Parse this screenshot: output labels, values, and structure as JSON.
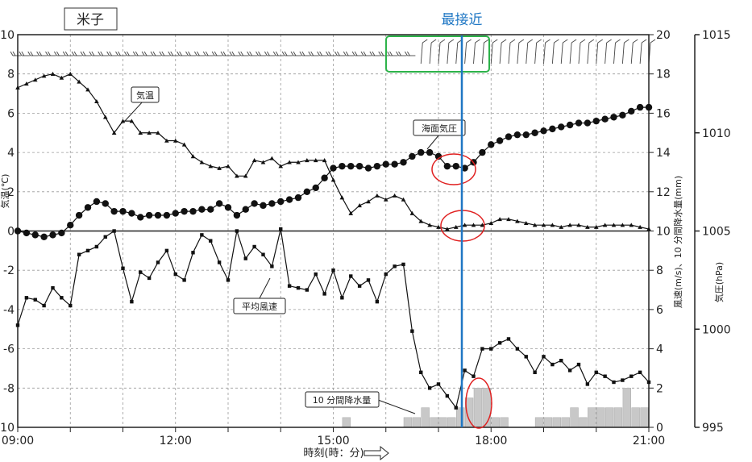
{
  "chart_data": {
    "type": "line",
    "station": "米子",
    "closest_label": "最接近",
    "xlabel": "時刻(時：分)",
    "ylabel_left": "気温(℃)",
    "ylabel_right1": "風速(m/s)、10 分間降水量(mm)",
    "ylabel_right2": "気圧(hPa)",
    "x_range": [
      "09:00",
      "21:00"
    ],
    "x_ticks": [
      "09:00",
      "12:00",
      "15:00",
      "18:00",
      "21:00"
    ],
    "y_left": {
      "range": [
        -10,
        10
      ],
      "ticks": [
        "10",
        "8",
        "6",
        "4",
        "2",
        "0",
        "-2",
        "-4",
        "-6",
        "-8",
        "-10"
      ]
    },
    "y_right1": {
      "range": [
        0,
        20
      ],
      "ticks": [
        "20",
        "18",
        "16",
        "14",
        "12",
        "10",
        "8",
        "6",
        "4",
        "2",
        "0"
      ]
    },
    "y_right2": {
      "range": [
        995,
        1015
      ],
      "ticks": [
        "1015",
        "1010",
        "1005",
        "1000",
        "995"
      ]
    },
    "closest_time": "17:30",
    "series": [
      {
        "name": "気温",
        "marker": "triangle",
        "x": [
          "09:00",
          "09:10",
          "09:20",
          "09:30",
          "09:40",
          "09:50",
          "10:00",
          "10:10",
          "10:20",
          "10:30",
          "10:40",
          "10:50",
          "11:00",
          "11:10",
          "11:20",
          "11:30",
          "11:40",
          "11:50",
          "12:00",
          "12:10",
          "12:20",
          "12:30",
          "12:40",
          "12:50",
          "13:00",
          "13:10",
          "13:20",
          "13:30",
          "13:40",
          "13:50",
          "14:00",
          "14:10",
          "14:20",
          "14:30",
          "14:40",
          "14:50",
          "15:00",
          "15:10",
          "15:20",
          "15:30",
          "15:40",
          "15:50",
          "16:00",
          "16:10",
          "16:20",
          "16:30",
          "16:40",
          "16:50",
          "17:00",
          "17:10",
          "17:20",
          "17:30",
          "17:40",
          "17:50",
          "18:00",
          "18:10",
          "18:20",
          "18:30",
          "18:40",
          "18:50",
          "19:00",
          "19:10",
          "19:20",
          "19:30",
          "19:40",
          "19:50",
          "20:00",
          "20:10",
          "20:20",
          "20:30",
          "20:40",
          "20:50",
          "21:00"
        ],
        "values": [
          7.3,
          7.5,
          7.7,
          7.9,
          8.0,
          7.8,
          8.0,
          7.6,
          7.2,
          6.6,
          5.8,
          5.0,
          5.6,
          5.6,
          5.0,
          5.0,
          5.0,
          4.6,
          4.6,
          4.4,
          3.8,
          3.5,
          3.3,
          3.2,
          3.3,
          2.8,
          2.8,
          3.6,
          3.5,
          3.7,
          3.3,
          3.5,
          3.5,
          3.6,
          3.6,
          3.6,
          2.6,
          1.7,
          0.9,
          1.3,
          1.5,
          1.8,
          1.6,
          1.8,
          1.6,
          0.9,
          0.5,
          0.3,
          0.2,
          0.1,
          0.2,
          0.3,
          0.3,
          0.3,
          0.4,
          0.6,
          0.6,
          0.5,
          0.4,
          0.3,
          0.3,
          0.3,
          0.2,
          0.3,
          0.3,
          0.2,
          0.2,
          0.3,
          0.3,
          0.3,
          0.3,
          0.2,
          0.1
        ]
      },
      {
        "name": "海面気圧",
        "marker": "circle",
        "x": [
          "09:00",
          "09:10",
          "09:20",
          "09:30",
          "09:40",
          "09:50",
          "10:00",
          "10:10",
          "10:20",
          "10:30",
          "10:40",
          "10:50",
          "11:00",
          "11:10",
          "11:20",
          "11:30",
          "11:40",
          "11:50",
          "12:00",
          "12:10",
          "12:20",
          "12:30",
          "12:40",
          "12:50",
          "13:00",
          "13:10",
          "13:20",
          "13:30",
          "13:40",
          "13:50",
          "14:00",
          "14:10",
          "14:20",
          "14:30",
          "14:40",
          "14:50",
          "15:00",
          "15:10",
          "15:20",
          "15:30",
          "15:40",
          "15:50",
          "16:00",
          "16:10",
          "16:20",
          "16:30",
          "16:40",
          "16:50",
          "17:00",
          "17:10",
          "17:20",
          "17:30",
          "17:40",
          "17:50",
          "18:00",
          "18:10",
          "18:20",
          "18:30",
          "18:40",
          "18:50",
          "19:00",
          "19:10",
          "19:20",
          "19:30",
          "19:40",
          "19:50",
          "20:00",
          "20:10",
          "20:20",
          "20:30",
          "20:40",
          "20:50",
          "21:00"
        ],
        "values": [
          1005.0,
          1004.9,
          1004.8,
          1004.7,
          1004.8,
          1004.9,
          1005.3,
          1005.8,
          1006.2,
          1006.5,
          1006.4,
          1006.0,
          1006.0,
          1005.9,
          1005.7,
          1005.8,
          1005.8,
          1005.8,
          1005.9,
          1006.0,
          1006.0,
          1006.1,
          1006.1,
          1006.4,
          1006.2,
          1005.8,
          1006.1,
          1006.4,
          1006.3,
          1006.4,
          1006.5,
          1006.6,
          1006.7,
          1007.0,
          1007.2,
          1007.7,
          1008.2,
          1008.3,
          1008.3,
          1008.3,
          1008.2,
          1008.3,
          1008.4,
          1008.4,
          1008.5,
          1008.8,
          1009.0,
          1009.0,
          1008.8,
          1008.3,
          1008.3,
          1008.2,
          1008.5,
          1009.0,
          1009.4,
          1009.6,
          1009.8,
          1009.9,
          1009.9,
          1010.0,
          1010.1,
          1010.2,
          1010.3,
          1010.4,
          1010.5,
          1010.5,
          1010.6,
          1010.7,
          1010.8,
          1010.9,
          1011.1,
          1011.3,
          1011.3
        ]
      },
      {
        "name": "平均風速",
        "marker": "square",
        "x": [
          "09:00",
          "09:10",
          "09:20",
          "09:30",
          "09:40",
          "09:50",
          "10:00",
          "10:10",
          "10:20",
          "10:30",
          "10:40",
          "10:50",
          "11:00",
          "11:10",
          "11:20",
          "11:30",
          "11:40",
          "11:50",
          "12:00",
          "12:10",
          "12:20",
          "12:30",
          "12:40",
          "12:50",
          "13:00",
          "13:10",
          "13:20",
          "13:30",
          "13:40",
          "13:50",
          "14:00",
          "14:10",
          "14:20",
          "14:30",
          "14:40",
          "14:50",
          "15:00",
          "15:10",
          "15:20",
          "15:30",
          "15:40",
          "15:50",
          "16:00",
          "16:10",
          "16:20",
          "16:30",
          "16:40",
          "16:50",
          "17:00",
          "17:10",
          "17:20",
          "17:30",
          "17:40",
          "17:50",
          "18:00",
          "18:10",
          "18:20",
          "18:30",
          "18:40",
          "18:50",
          "19:00",
          "19:10",
          "19:20",
          "19:30",
          "19:40",
          "19:50",
          "20:00",
          "20:10",
          "20:20",
          "20:30",
          "20:40",
          "20:50",
          "21:00"
        ],
        "values": [
          5.2,
          6.6,
          6.5,
          6.2,
          7.1,
          6.6,
          6.2,
          8.8,
          9.0,
          9.2,
          9.7,
          10.0,
          8.1,
          6.4,
          7.9,
          7.6,
          8.4,
          9.0,
          7.8,
          7.5,
          8.9,
          9.8,
          9.5,
          8.4,
          7.5,
          10.0,
          8.6,
          9.2,
          8.8,
          8.2,
          10.1,
          7.2,
          7.1,
          7.0,
          7.8,
          6.8,
          8.0,
          6.6,
          7.7,
          7.2,
          7.5,
          6.4,
          7.8,
          8.2,
          8.3,
          4.9,
          2.8,
          2.0,
          2.2,
          1.6,
          1.0,
          2.9,
          2.6,
          4.0,
          4.0,
          4.3,
          4.5,
          4.0,
          3.6,
          2.8,
          3.6,
          3.2,
          3.4,
          2.9,
          3.2,
          2.2,
          2.8,
          2.6,
          2.3,
          2.4,
          2.6,
          2.8,
          2.3
        ]
      },
      {
        "name": "10 分間降水量",
        "type": "bar",
        "x": [
          "15:20",
          "16:30",
          "16:40",
          "16:50",
          "17:00",
          "17:10",
          "17:20",
          "17:30",
          "17:40",
          "17:50",
          "18:00",
          "18:10",
          "18:20",
          "19:00",
          "19:10",
          "19:20",
          "19:30",
          "19:40",
          "19:50",
          "20:00",
          "20:10",
          "20:20",
          "20:30",
          "20:40",
          "20:50",
          "21:00"
        ],
        "values": [
          0.5,
          0.5,
          0.5,
          1.0,
          0.5,
          0.5,
          0.5,
          1.0,
          1.5,
          2.0,
          2.0,
          0.5,
          0.5,
          0.5,
          0.5,
          0.5,
          0.5,
          1.0,
          0.5,
          1.0,
          1.0,
          1.0,
          1.0,
          2.0,
          1.0,
          1.0
        ]
      }
    ],
    "annotations": {
      "temp": "気温",
      "pressure": "海面気圧",
      "wind": "平均風速",
      "precip": "10 分間降水量"
    }
  }
}
